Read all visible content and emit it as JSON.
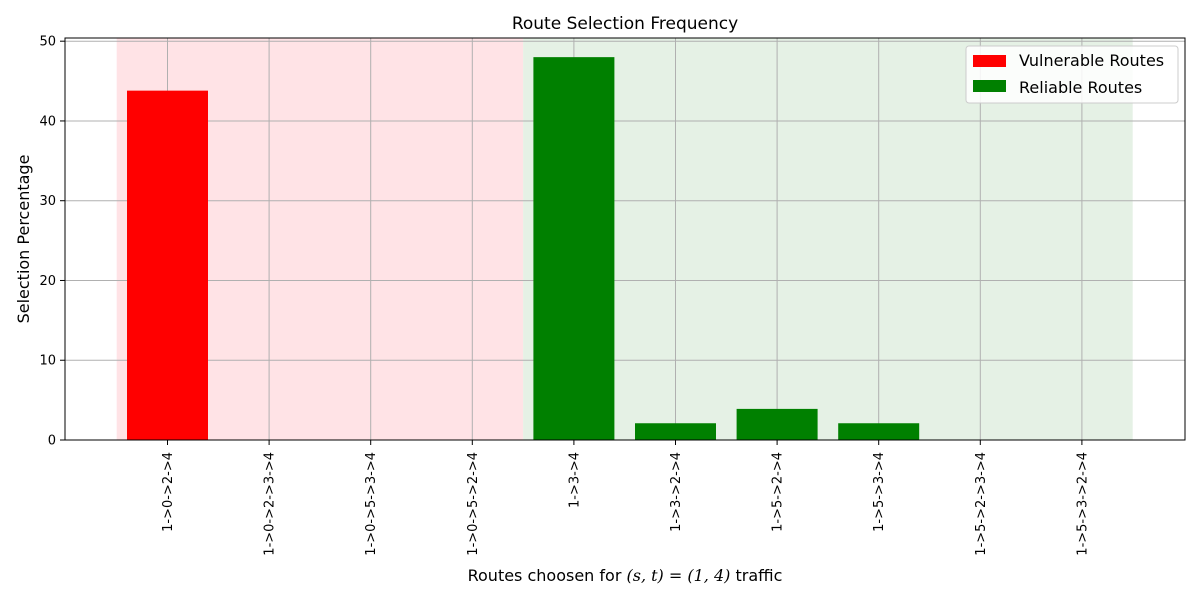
{
  "chart_data": {
    "type": "bar",
    "title": "Route Selection Frequency",
    "xlabel_prefix": "Routes choosen for ",
    "xlabel_math": "(s, t) = (1, 4)",
    "xlabel_suffix": " traffic",
    "ylabel": "Selection Percentage",
    "ylim": [
      0,
      50.4
    ],
    "yticks": [
      0,
      10,
      20,
      30,
      40,
      50
    ],
    "grid": true,
    "legend_position": "top-right",
    "categories": [
      "1->0->2->4",
      "1->0->2->3->4",
      "1->0->5->3->4",
      "1->0->5->2->4",
      "1->3->4",
      "1->3->2->4",
      "1->5->2->4",
      "1->5->3->4",
      "1->5->2->3->4",
      "1->5->3->2->4"
    ],
    "series": [
      {
        "name": "Vulnerable Routes",
        "color": "#ff0000",
        "values": [
          43.8,
          0,
          0,
          0,
          null,
          null,
          null,
          null,
          null,
          null
        ]
      },
      {
        "name": "Reliable Routes",
        "color": "#008000",
        "values": [
          null,
          null,
          null,
          null,
          48.0,
          2.1,
          3.9,
          2.1,
          0,
          0
        ]
      }
    ],
    "regions": [
      {
        "series": "Vulnerable Routes",
        "from_index": 0,
        "to_index": 3,
        "color": "#ffe3e6"
      },
      {
        "series": "Reliable Routes",
        "from_index": 4,
        "to_index": 9,
        "color": "#e5f1e5"
      }
    ]
  }
}
